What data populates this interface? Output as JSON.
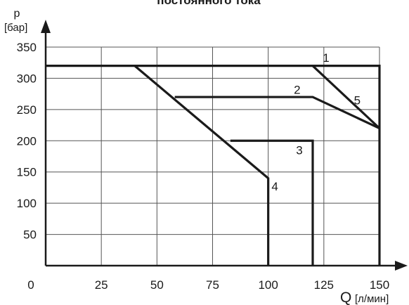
{
  "chart_data": {
    "type": "line",
    "title": "постоянного тока",
    "ylabel_top": "p",
    "ylabel_unit": "[бар]",
    "xlabel": "Q",
    "xlabel_unit": "[л/мин]",
    "xlim": [
      0,
      150
    ],
    "ylim": [
      0,
      350
    ],
    "xticks": [
      0,
      25,
      50,
      75,
      100,
      125,
      150
    ],
    "yticks": [
      50,
      100,
      150,
      200,
      250,
      300,
      350
    ],
    "grid": true,
    "series": [
      {
        "name": "1",
        "x": [
          0,
          150,
          150
        ],
        "y": [
          320,
          320,
          0
        ],
        "label_at": [
          126,
          333
        ]
      },
      {
        "name": "2",
        "x": [
          58,
          120,
          150
        ],
        "y": [
          270,
          270,
          220
        ],
        "label_at": [
          113,
          282
        ]
      },
      {
        "name": "3",
        "x": [
          83,
          120,
          120
        ],
        "y": [
          200,
          200,
          0
        ],
        "label_at": [
          114,
          185
        ]
      },
      {
        "name": "4",
        "x": [
          40,
          100,
          100
        ],
        "y": [
          320,
          140,
          0
        ],
        "label_at": [
          103,
          127
        ]
      },
      {
        "name": "5",
        "x": [
          120,
          150
        ],
        "y": [
          320,
          220
        ],
        "label_at": [
          140,
          265
        ]
      }
    ]
  }
}
